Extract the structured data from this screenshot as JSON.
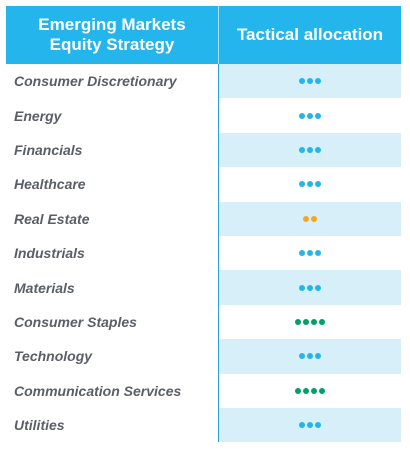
{
  "header": {
    "left_label": "Emerging Markets Equity Strategy",
    "right_label": "Tactical allocation"
  },
  "colors": {
    "header_bg": "#23b5ec",
    "row_alt_bg": "#d6eff9",
    "neutral": "#23b5ec",
    "underweight": "#f5a623",
    "overweight": "#00a06a"
  },
  "rows": [
    {
      "sector": "Consumer Discretionary",
      "dots": 3,
      "color": "#23b5ec"
    },
    {
      "sector": "Energy",
      "dots": 3,
      "color": "#23b5ec"
    },
    {
      "sector": "Financials",
      "dots": 3,
      "color": "#23b5ec"
    },
    {
      "sector": "Healthcare",
      "dots": 3,
      "color": "#23b5ec"
    },
    {
      "sector": "Real Estate",
      "dots": 2,
      "color": "#f5a623"
    },
    {
      "sector": "Industrials",
      "dots": 3,
      "color": "#23b5ec"
    },
    {
      "sector": "Materials",
      "dots": 3,
      "color": "#23b5ec"
    },
    {
      "sector": "Consumer Staples",
      "dots": 4,
      "color": "#00a06a"
    },
    {
      "sector": "Technology",
      "dots": 3,
      "color": "#23b5ec"
    },
    {
      "sector": "Communication Services",
      "dots": 4,
      "color": "#00a06a"
    },
    {
      "sector": "Utilities",
      "dots": 3,
      "color": "#23b5ec"
    }
  ]
}
